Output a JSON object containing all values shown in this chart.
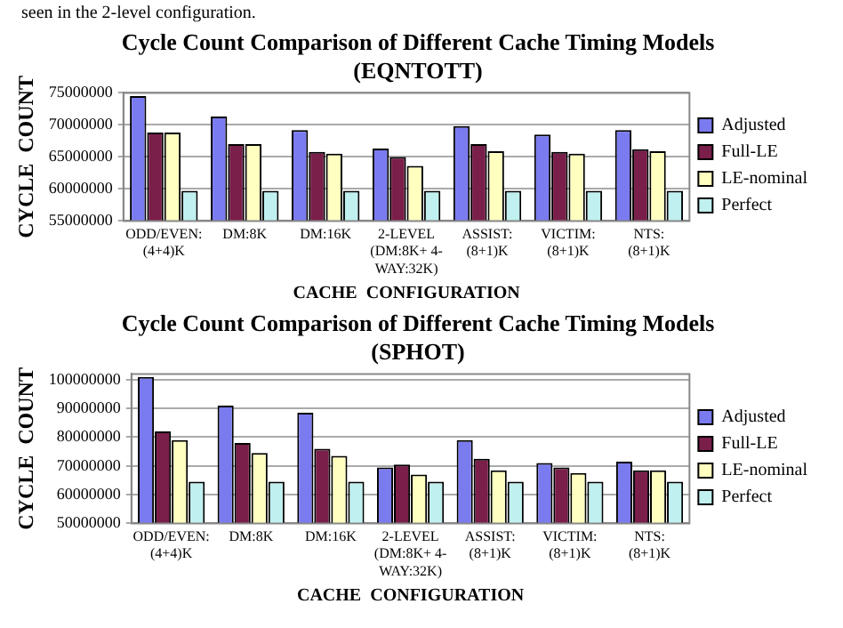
{
  "chart_data": [
    {
      "type": "bar",
      "title": "Cycle Count Comparison of Different Cache Timing Models\n(EQNTOTT)",
      "xlabel": "CACHE  CONFIGURATION",
      "ylabel": "CYCLE  COUNT",
      "annotations": [
        "seen in the 2-level configuration."
      ],
      "categories": [
        "ODD/EVEN:\n(4+4)K",
        "DM:8K",
        "DM:16K",
        "2-LEVEL\n(DM:8K+ 4-\nWAY:32K)",
        "ASSIST:\n(8+1)K",
        "VICTIM:\n(8+1)K",
        "NTS:\n(8+1)K"
      ],
      "series": [
        {
          "name": "Adjusted",
          "color": "#7b7bf0",
          "values": [
            74500000,
            71300000,
            69200000,
            66300000,
            69800000,
            68500000,
            69200000
          ]
        },
        {
          "name": "Full-LE",
          "color": "#7a1e4a",
          "values": [
            68800000,
            67000000,
            65800000,
            65000000,
            67000000,
            65800000,
            66200000
          ]
        },
        {
          "name": "LE-nominal",
          "color": "#ffffc0",
          "values": [
            68800000,
            67000000,
            65500000,
            63600000,
            65900000,
            65500000,
            65900000
          ]
        },
        {
          "name": "Perfect",
          "color": "#c0f0f0",
          "values": [
            59700000,
            59700000,
            59700000,
            59700000,
            59700000,
            59700000,
            59700000
          ]
        }
      ],
      "ylim": [
        55000000,
        75000000
      ],
      "yticks": [
        55000000,
        60000000,
        65000000,
        70000000,
        75000000
      ],
      "grid": "y",
      "legend": "right"
    },
    {
      "type": "bar",
      "title": "Cycle Count Comparison of Different Cache Timing Models\n(SPHOT)",
      "xlabel": "CACHE  CONFIGURATION",
      "ylabel": "CYCLE  COUNT",
      "categories": [
        "ODD/EVEN:\n(4+4)K",
        "DM:8K",
        "DM:16K",
        "2-LEVEL\n(DM:8K+ 4-\nWAY:32K)",
        "ASSIST:\n(8+1)K",
        "VICTIM:\n(8+1)K",
        "NTS:\n(8+1)K"
      ],
      "series": [
        {
          "name": "Adjusted",
          "color": "#7b7bf0",
          "values": [
            101000000,
            91000000,
            88500000,
            69500000,
            79000000,
            71000000,
            71500000
          ]
        },
        {
          "name": "Full-LE",
          "color": "#7a1e4a",
          "values": [
            82000000,
            78000000,
            76000000,
            70500000,
            72500000,
            69500000,
            68500000
          ]
        },
        {
          "name": "LE-nominal",
          "color": "#ffffc0",
          "values": [
            79000000,
            74500000,
            73500000,
            67000000,
            68500000,
            67500000,
            68500000
          ]
        },
        {
          "name": "Perfect",
          "color": "#c0f0f0",
          "values": [
            64500000,
            64500000,
            64500000,
            64500000,
            64500000,
            64500000,
            64500000
          ]
        }
      ],
      "ylim": [
        50000000,
        102000000
      ],
      "yticks": [
        50000000,
        60000000,
        70000000,
        80000000,
        90000000,
        100000000
      ],
      "grid": "y",
      "legend": "right"
    }
  ]
}
